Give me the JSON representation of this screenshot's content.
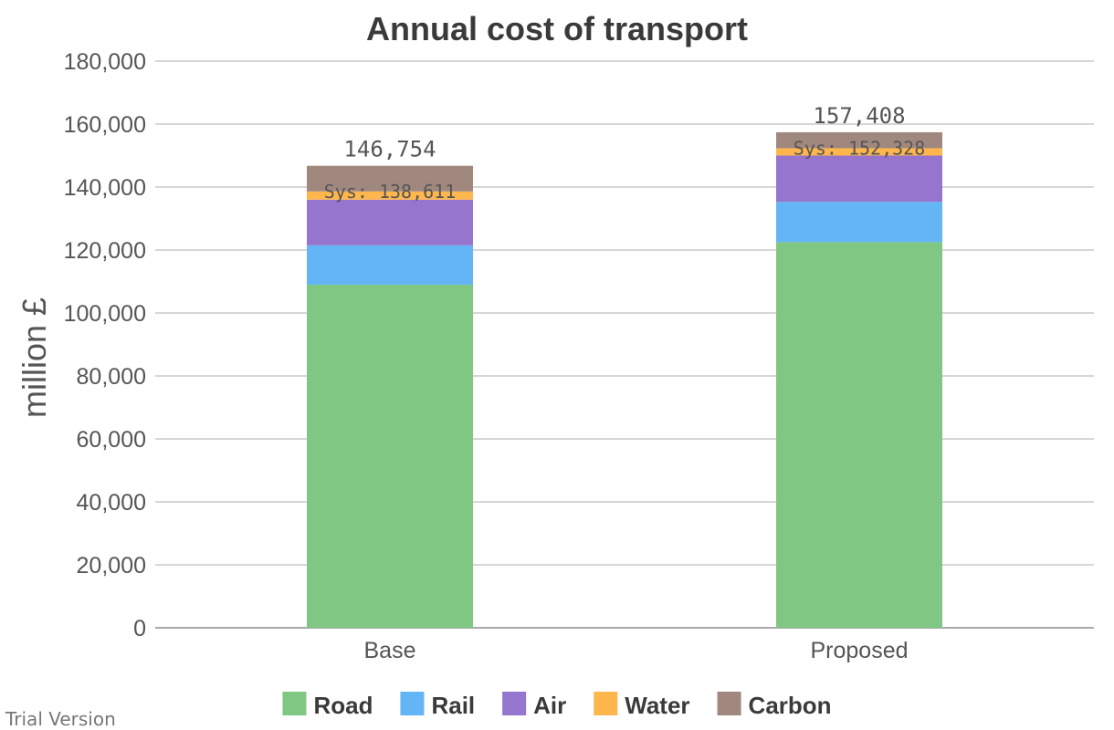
{
  "chart_data": {
    "type": "bar",
    "stacked": true,
    "title": "Annual cost of transport",
    "ylabel": "million £",
    "xlabel": "",
    "ylim": [
      0,
      180000
    ],
    "yticks": [
      0,
      20000,
      40000,
      60000,
      80000,
      100000,
      120000,
      140000,
      160000,
      180000
    ],
    "ytick_labels": [
      "0",
      "20,000",
      "40,000",
      "60,000",
      "80,000",
      "100,000",
      "120,000",
      "140,000",
      "160,000",
      "180,000"
    ],
    "grid": true,
    "legend_position": "bottom",
    "categories": [
      "Base",
      "Proposed"
    ],
    "series": [
      {
        "name": "Road",
        "color": "#81c784",
        "values": [
          109000,
          122500
        ]
      },
      {
        "name": "Rail",
        "color": "#64b5f6",
        "values": [
          12500,
          12800
        ]
      },
      {
        "name": "Air",
        "color": "#9575cd",
        "values": [
          14500,
          14700
        ]
      },
      {
        "name": "Water",
        "color": "#ffb74d",
        "values": [
          2611,
          2328
        ]
      },
      {
        "name": "Carbon",
        "color": "#a1887f",
        "values": [
          8143,
          5080
        ]
      }
    ],
    "totals": [
      "146,754",
      "157,408"
    ],
    "system_labels": [
      "Sys: 138,611",
      "Sys: 152,328"
    ]
  },
  "watermark": "Trial Version"
}
